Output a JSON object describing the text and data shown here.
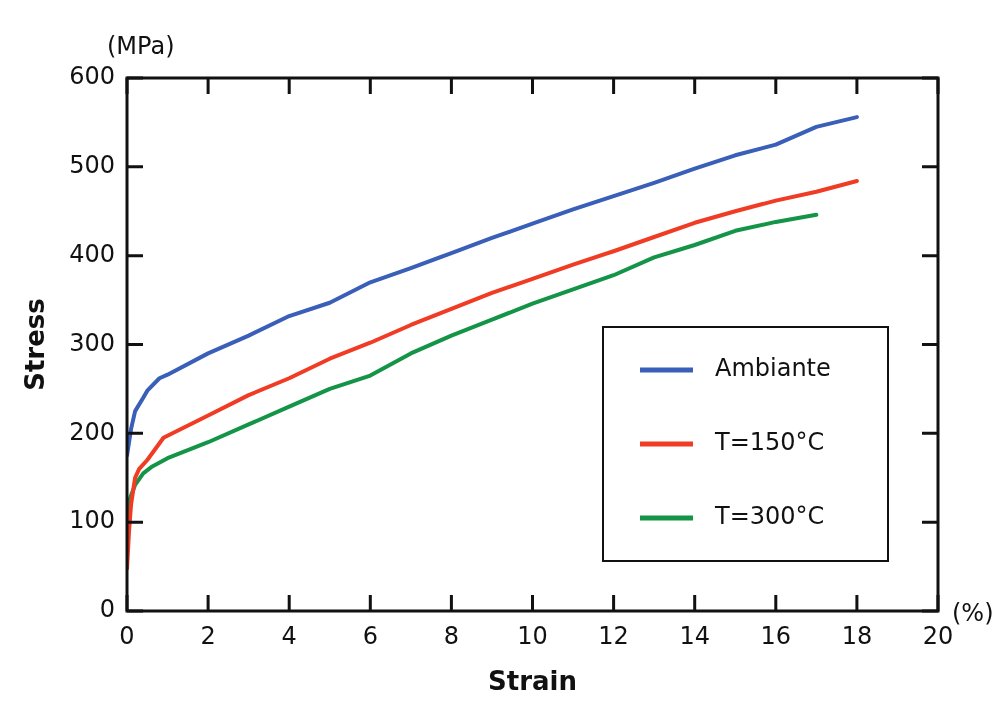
{
  "chart_data": {
    "type": "line",
    "xlabel": "Strain",
    "ylabel": "Stress",
    "annotations": [
      "(MPa)",
      "(%)"
    ],
    "xlim": [
      0,
      20
    ],
    "xticks": [
      0,
      2,
      4,
      6,
      8,
      10,
      12,
      14,
      16,
      18,
      20
    ],
    "ylim": [
      0,
      600
    ],
    "yticks": [
      0,
      100,
      200,
      300,
      400,
      500,
      600
    ],
    "grid": false,
    "legend": "bottom right",
    "marker": "none",
    "line_style": "solid",
    "series": [
      {
        "name": "Ambiante",
        "color": "#3a5fb8",
        "x": [
          0,
          0.1,
          0.2,
          0.4,
          0.5,
          0.8,
          1,
          2,
          3,
          4,
          5,
          6,
          7,
          8,
          9,
          10,
          11,
          12,
          13,
          14,
          15,
          16,
          17,
          18
        ],
        "values": [
          175,
          205,
          225,
          240,
          248,
          262,
          266,
          290,
          310,
          332,
          347,
          370,
          386,
          403,
          420,
          436,
          452,
          467,
          482,
          498,
          513,
          525,
          545,
          556
        ]
      },
      {
        "name": "T=150°C",
        "color": "#f03c24",
        "x": [
          0,
          0.05,
          0.1,
          0.2,
          0.3,
          0.5,
          0.9,
          2,
          3,
          4,
          5,
          6,
          7,
          8,
          9,
          10,
          11,
          12,
          13,
          14,
          15,
          16,
          17,
          18
        ],
        "values": [
          48,
          90,
          120,
          150,
          160,
          170,
          195,
          220,
          243,
          262,
          284,
          302,
          322,
          340,
          358,
          374,
          390,
          405,
          421,
          437,
          450,
          462,
          472,
          484
        ]
      },
      {
        "name": "T=300°C",
        "color": "#149447",
        "x": [
          0,
          0.02,
          0.1,
          0.2,
          0.4,
          0.6,
          1,
          2,
          3,
          4,
          5,
          6,
          7,
          8,
          9,
          10,
          11,
          12,
          13,
          14,
          15,
          16,
          17
        ],
        "values": [
          95,
          120,
          130,
          142,
          155,
          162,
          172,
          190,
          210,
          230,
          250,
          265,
          290,
          310,
          328,
          346,
          362,
          378,
          398,
          412,
          428,
          438,
          446
        ]
      }
    ]
  }
}
